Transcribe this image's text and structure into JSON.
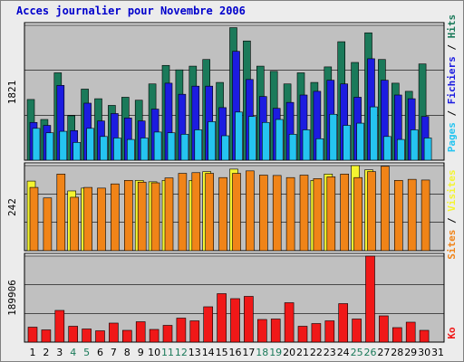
{
  "chart_data": [
    {
      "type": "bar",
      "title": "Acces journalier pour Novembre 2006",
      "panel": "pages-fichiers-hits",
      "ylabel": "1821",
      "ymax": 1821,
      "categories": [
        "1",
        "2",
        "3",
        "4",
        "5",
        "6",
        "7",
        "8",
        "9",
        "10",
        "11",
        "12",
        "13",
        "14",
        "15",
        "16",
        "17",
        "18",
        "19",
        "20",
        "21",
        "22",
        "23",
        "24",
        "25",
        "26",
        "27",
        "28",
        "29",
        "30",
        "31"
      ],
      "series": [
        {
          "name": "Hits",
          "color": "#1b7a5a",
          "values": [
            820,
            550,
            1180,
            600,
            960,
            830,
            740,
            850,
            810,
            1030,
            1280,
            1220,
            1270,
            1360,
            1050,
            1790,
            1610,
            1270,
            1200,
            1030,
            1180,
            1050,
            1260,
            1600,
            1320,
            1720,
            1360,
            1040,
            930,
            1300,
            0
          ]
        },
        {
          "name": "Fichiers",
          "color": "#1c1ce0",
          "values": [
            510,
            470,
            1010,
            400,
            770,
            530,
            630,
            570,
            530,
            690,
            1040,
            890,
            1000,
            1000,
            710,
            1470,
            1090,
            860,
            700,
            780,
            880,
            930,
            1080,
            1030,
            850,
            1370,
            1080,
            880,
            830,
            590,
            0
          ]
        },
        {
          "name": "Pages",
          "color": "#25c4f0",
          "values": [
            430,
            370,
            390,
            240,
            430,
            320,
            300,
            280,
            300,
            380,
            370,
            350,
            410,
            520,
            330,
            650,
            590,
            510,
            550,
            350,
            410,
            290,
            620,
            470,
            500,
            720,
            320,
            280,
            410,
            300,
            0
          ]
        }
      ]
    },
    {
      "type": "bar",
      "panel": "visites-sites",
      "ylabel": "242",
      "ymax": 242,
      "categories": [
        "1",
        "2",
        "3",
        "4",
        "5",
        "6",
        "7",
        "8",
        "9",
        "10",
        "11",
        "12",
        "13",
        "14",
        "15",
        "16",
        "17",
        "18",
        "19",
        "20",
        "21",
        "22",
        "23",
        "24",
        "25",
        "26",
        "27",
        "28",
        "29",
        "30",
        "31"
      ],
      "series": [
        {
          "name": "Visites",
          "color": "#f4f430",
          "values": [
            198,
            0,
            0,
            170,
            178,
            0,
            0,
            0,
            200,
            196,
            200,
            0,
            200,
            225,
            0,
            232,
            0,
            0,
            0,
            0,
            0,
            200,
            218,
            0,
            242,
            230,
            0,
            0,
            0,
            0,
            0
          ]
        },
        {
          "name": "Sites",
          "color": "#f08418",
          "values": [
            180,
            150,
            218,
            152,
            180,
            178,
            190,
            200,
            195,
            193,
            207,
            220,
            222,
            220,
            208,
            220,
            227,
            215,
            214,
            208,
            215,
            205,
            210,
            218,
            208,
            225,
            240,
            200,
            203,
            201,
            0
          ]
        }
      ]
    },
    {
      "type": "bar",
      "panel": "ko",
      "ylabel": "189906",
      "ymax": 189906,
      "categories": [
        "1",
        "2",
        "3",
        "4",
        "5",
        "6",
        "7",
        "8",
        "9",
        "10",
        "11",
        "12",
        "13",
        "14",
        "15",
        "16",
        "17",
        "18",
        "19",
        "20",
        "21",
        "22",
        "23",
        "24",
        "25",
        "26",
        "27",
        "28",
        "29",
        "30",
        "31"
      ],
      "series": [
        {
          "name": "Ko",
          "color": "#f01818",
          "values": [
            33000,
            27000,
            70000,
            35000,
            29000,
            25000,
            42000,
            26000,
            45000,
            28000,
            37000,
            53000,
            47000,
            78000,
            107000,
            96000,
            101000,
            50000,
            51000,
            87000,
            35000,
            41000,
            47000,
            85000,
            51000,
            189906,
            58000,
            32000,
            44000,
            26000,
            0
          ]
        }
      ]
    }
  ],
  "right_labels": {
    "pages": "Pages",
    "fichiers": "Fichiers",
    "hits": "Hits",
    "visites": "Visites",
    "sites": "Sites",
    "ko": "Ko",
    "sep": " / "
  },
  "day_axis": {
    "labels": [
      "1",
      "2",
      "3",
      "4",
      "5",
      "6",
      "7",
      "8",
      "9",
      "10",
      "11",
      "12",
      "13",
      "14",
      "15",
      "16",
      "17",
      "18",
      "19",
      "20",
      "21",
      "22",
      "23",
      "24",
      "25",
      "26",
      "27",
      "28",
      "29",
      "30",
      "31"
    ],
    "weekend_days": [
      "4",
      "5",
      "11",
      "12",
      "18",
      "19",
      "25",
      "26"
    ],
    "weekday_color": "#000000",
    "weekend_color": "#1b7a5a"
  },
  "colors": {
    "plot_bg": "#c0c0c0",
    "outer_bg": "#ececec",
    "title": "#0000cc",
    "pages": "#25c4f0",
    "fichiers": "#1c1ce0",
    "hits": "#1b7a5a",
    "visites": "#f4f430",
    "sites": "#f08418",
    "ko": "#f01818"
  }
}
